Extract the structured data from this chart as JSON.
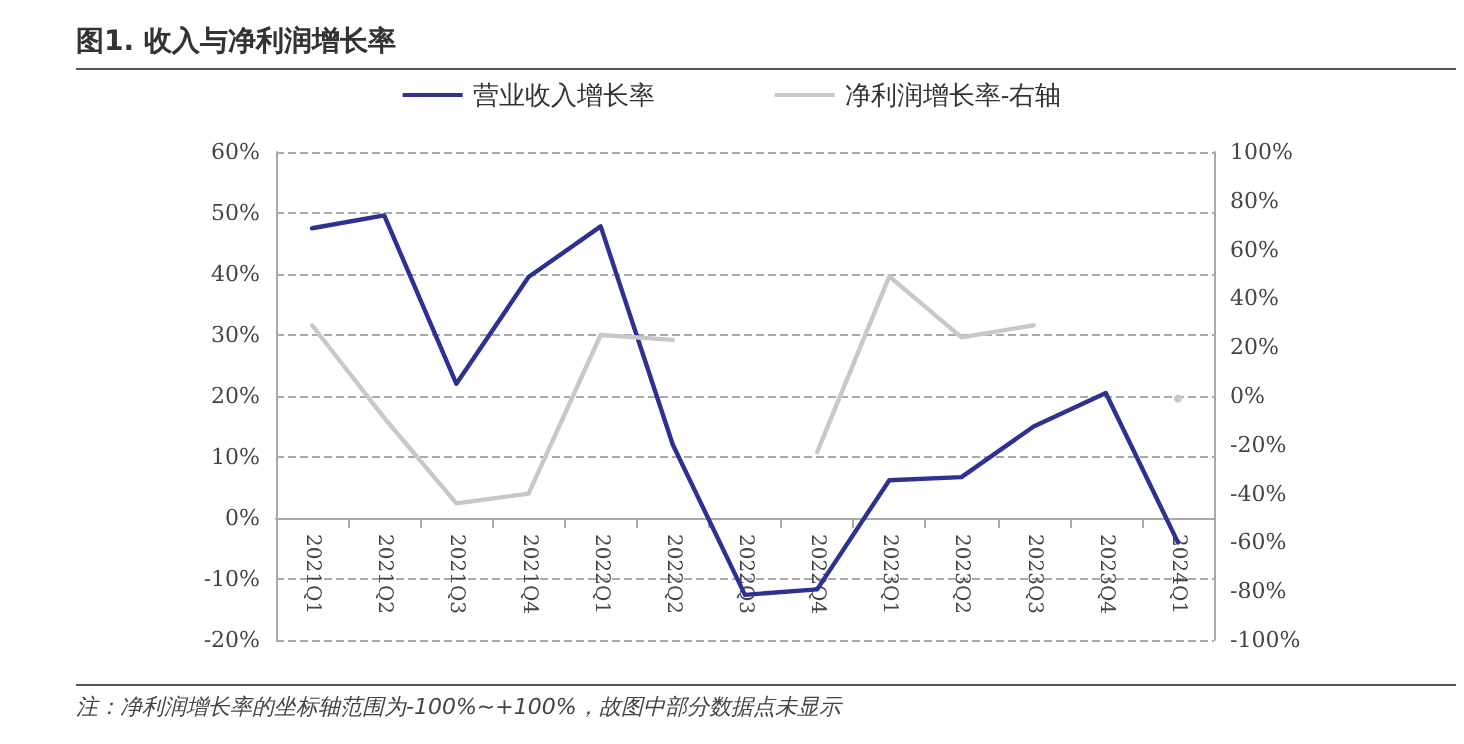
{
  "chart_data": {
    "type": "line",
    "title": "图1. 收入与净利润增长率",
    "categories": [
      "2021Q1",
      "2021Q2",
      "2021Q3",
      "2021Q4",
      "2022Q1",
      "2022Q2",
      "2022Q3",
      "2022Q4",
      "2023Q1",
      "2023Q2",
      "2023Q3",
      "2023Q4",
      "2024Q1"
    ],
    "series": [
      {
        "name": "营业收入增长率",
        "color": "#2e3192",
        "values": [
          47.5,
          49.6,
          22.0,
          39.5,
          47.8,
          12.0,
          -12.6,
          -11.7,
          6.2,
          6.7,
          15.0,
          20.5,
          -4.0
        ]
      },
      {
        "name": "净利润增长率-右轴",
        "color": "#c8c8c8",
        "axis": "y2",
        "values": [
          29,
          -9,
          -44,
          -40,
          25,
          23,
          null,
          -23,
          49,
          24,
          29,
          null,
          -1
        ]
      }
    ],
    "ylim": [
      -20,
      60
    ],
    "yticks": [
      {
        "value": -20,
        "label": "-20%"
      },
      {
        "value": -10,
        "label": "-10%"
      },
      {
        "value": 0,
        "label": "0%"
      },
      {
        "value": 10,
        "label": "10%"
      },
      {
        "value": 20,
        "label": "20%"
      },
      {
        "value": 30,
        "label": "30%"
      },
      {
        "value": 40,
        "label": "40%"
      },
      {
        "value": 50,
        "label": "50%"
      },
      {
        "value": 60,
        "label": "60%"
      }
    ],
    "y2lim": [
      -100,
      100
    ],
    "y2ticks": [
      {
        "value": -100,
        "label": "-100%"
      },
      {
        "value": -80,
        "label": "-80%"
      },
      {
        "value": -60,
        "label": "-60%"
      },
      {
        "value": -40,
        "label": "-40%"
      },
      {
        "value": -20,
        "label": "-20%"
      },
      {
        "value": 0,
        "label": "0%"
      },
      {
        "value": 20,
        "label": "20%"
      },
      {
        "value": 40,
        "label": "40%"
      },
      {
        "value": 60,
        "label": "60%"
      },
      {
        "value": 80,
        "label": "80%"
      },
      {
        "value": 100,
        "label": "100%"
      }
    ],
    "grid": "y",
    "legend": "top",
    "marker": "none",
    "line_style": "solid",
    "annotations": [
      "注：净利润增长率的坐标轴范围为-100%~+100%，故图中部分数据点未显示"
    ]
  }
}
